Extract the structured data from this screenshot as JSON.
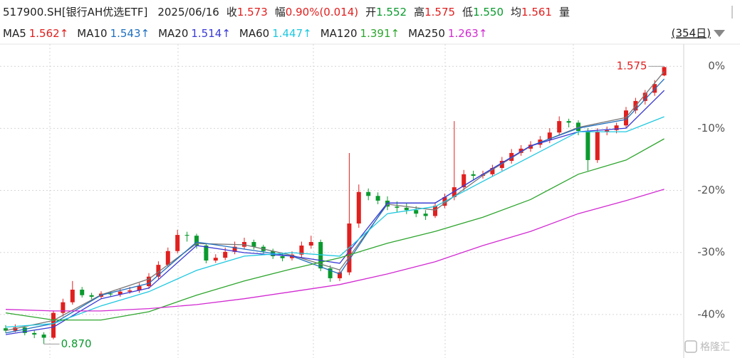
{
  "chart_data": {
    "type": "candlestick",
    "title": "517900.SH[银行AH优选ETF]",
    "date": "2025/06/16",
    "quote": [
      {
        "label": "收",
        "value": "1.573",
        "color": "#e0201f"
      },
      {
        "label": "幅",
        "value": "0.90%(0.014)",
        "color": "#e0201f"
      },
      {
        "label": "开",
        "value": "1.552",
        "color": "#0a9a2e"
      },
      {
        "label": "高",
        "value": "1.575",
        "color": "#e0201f"
      },
      {
        "label": "低",
        "value": "1.550",
        "color": "#0a9a2e"
      },
      {
        "label": "均",
        "value": "1.561",
        "color": "#e0201f"
      }
    ],
    "volume_label": "量",
    "period_label": "(354日)",
    "up_color": "#e0201f",
    "down_color": "#0a9a2e",
    "ohlc": [
      [
        0.91,
        0.918,
        0.898,
        0.904
      ],
      [
        0.904,
        0.92,
        0.9,
        0.912
      ],
      [
        0.912,
        0.916,
        0.892,
        0.898
      ],
      [
        0.898,
        0.904,
        0.885,
        0.894
      ],
      [
        0.894,
        0.9,
        0.87,
        0.886
      ],
      [
        0.886,
        0.955,
        0.882,
        0.949
      ],
      [
        0.949,
        0.985,
        0.94,
        0.976
      ],
      [
        0.976,
        1.03,
        0.97,
        1.008
      ],
      [
        1.008,
        1.015,
        0.988,
        0.994
      ],
      [
        0.994,
        1.0,
        0.984,
        0.99
      ],
      [
        0.99,
        1.004,
        0.985,
        0.998
      ],
      [
        0.998,
        1.004,
        0.99,
        0.996
      ],
      [
        0.996,
        1.01,
        0.99,
        1.003
      ],
      [
        1.003,
        1.015,
        0.998,
        1.006
      ],
      [
        1.006,
        1.025,
        1.0,
        1.017
      ],
      [
        1.017,
        1.05,
        1.01,
        1.041
      ],
      [
        1.041,
        1.08,
        1.035,
        1.071
      ],
      [
        1.071,
        1.115,
        1.065,
        1.106
      ],
      [
        1.106,
        1.16,
        1.1,
        1.147
      ],
      [
        1.147,
        1.155,
        1.13,
        1.145
      ],
      [
        1.145,
        1.15,
        1.112,
        1.12
      ],
      [
        1.12,
        1.125,
        1.075,
        1.082
      ],
      [
        1.082,
        1.098,
        1.076,
        1.089
      ],
      [
        1.089,
        1.115,
        1.083,
        1.104
      ],
      [
        1.104,
        1.13,
        1.098,
        1.117
      ],
      [
        1.117,
        1.14,
        1.11,
        1.129
      ],
      [
        1.129,
        1.135,
        1.11,
        1.117
      ],
      [
        1.117,
        1.122,
        1.1,
        1.106
      ],
      [
        1.106,
        1.112,
        1.086,
        1.093
      ],
      [
        1.093,
        1.1,
        1.08,
        1.088
      ],
      [
        1.088,
        1.105,
        1.082,
        1.097
      ],
      [
        1.097,
        1.13,
        1.09,
        1.12
      ],
      [
        1.12,
        1.145,
        1.112,
        1.129
      ],
      [
        1.129,
        1.135,
        1.055,
        1.062
      ],
      [
        1.062,
        1.07,
        1.028,
        1.037
      ],
      [
        1.037,
        1.06,
        1.03,
        1.052
      ],
      [
        1.052,
        1.355,
        1.045,
        1.176
      ],
      [
        1.176,
        1.275,
        1.165,
        1.256
      ],
      [
        1.256,
        1.265,
        1.235,
        1.246
      ],
      [
        1.246,
        1.255,
        1.225,
        1.234
      ],
      [
        1.234,
        1.245,
        1.21,
        1.219
      ],
      [
        1.219,
        1.232,
        1.205,
        1.216
      ],
      [
        1.216,
        1.228,
        1.2,
        1.21
      ],
      [
        1.21,
        1.22,
        1.192,
        1.201
      ],
      [
        1.201,
        1.21,
        1.185,
        1.195
      ],
      [
        1.195,
        1.23,
        1.19,
        1.221
      ],
      [
        1.221,
        1.252,
        1.215,
        1.243
      ],
      [
        1.243,
        1.436,
        1.235,
        1.268
      ],
      [
        1.268,
        1.312,
        1.26,
        1.301
      ],
      [
        1.301,
        1.31,
        1.285,
        1.297
      ],
      [
        1.297,
        1.31,
        1.29,
        1.301
      ],
      [
        1.301,
        1.325,
        1.295,
        1.317
      ],
      [
        1.317,
        1.345,
        1.31,
        1.335
      ],
      [
        1.335,
        1.365,
        1.328,
        1.355
      ],
      [
        1.355,
        1.375,
        1.348,
        1.366
      ],
      [
        1.366,
        1.385,
        1.358,
        1.376
      ],
      [
        1.376,
        1.398,
        1.368,
        1.389
      ],
      [
        1.389,
        1.418,
        1.38,
        1.407
      ],
      [
        1.407,
        1.448,
        1.4,
        1.436
      ],
      [
        1.436,
        1.442,
        1.42,
        1.432
      ],
      [
        1.432,
        1.438,
        1.4,
        1.411
      ],
      [
        1.411,
        1.418,
        1.31,
        1.337
      ],
      [
        1.337,
        1.418,
        1.33,
        1.409
      ],
      [
        1.409,
        1.422,
        1.4,
        1.413
      ],
      [
        1.413,
        1.432,
        1.405,
        1.425
      ],
      [
        1.425,
        1.472,
        1.418,
        1.463
      ],
      [
        1.463,
        1.495,
        1.455,
        1.487
      ],
      [
        1.487,
        1.515,
        1.478,
        1.508
      ],
      [
        1.508,
        1.54,
        1.5,
        1.53
      ],
      [
        1.552,
        1.575,
        1.55,
        1.573
      ]
    ],
    "ma_x": [
      0,
      5,
      10,
      15,
      20,
      25,
      30,
      35,
      40,
      45,
      50,
      55,
      60,
      65,
      69
    ],
    "series": [
      {
        "name": "MA5",
        "label": "1.562↑",
        "color": "#777777",
        "label_color": "#e0201f",
        "values": [
          0.904,
          0.93,
          0.995,
          1.035,
          1.125,
          1.122,
          1.095,
          1.058,
          1.225,
          1.21,
          1.298,
          1.372,
          1.42,
          1.445,
          1.562
        ]
      },
      {
        "name": "MA10",
        "label": "1.543↑",
        "color": "#1f6fc0",
        "label_color": "#1f6fc0",
        "values": [
          0.898,
          0.922,
          0.994,
          1.024,
          1.129,
          1.111,
          1.093,
          1.048,
          1.228,
          1.228,
          1.301,
          1.373,
          1.418,
          1.44,
          1.543
        ]
      },
      {
        "name": "MA20",
        "label": "1.514↑",
        "color": "#3a3ad6",
        "label_color": "#3a3ad6",
        "values": [
          0.894,
          0.913,
          0.985,
          1.012,
          1.12,
          1.102,
          1.093,
          1.075,
          1.228,
          1.228,
          1.301,
          1.373,
          1.409,
          1.418,
          1.514
        ]
      },
      {
        "name": "MA60",
        "label": "1.447↑",
        "color": "#1ec8e0",
        "label_color": "#1ec8e0",
        "values": [
          0.913,
          0.922,
          0.967,
          1.003,
          1.057,
          1.093,
          1.102,
          1.093,
          1.201,
          1.219,
          1.283,
          1.346,
          1.409,
          1.409,
          1.447
        ]
      },
      {
        "name": "MA120",
        "label": "1.391↑",
        "color": "#2ea52e",
        "label_color": "#2ea52e",
        "values": [
          0.949,
          0.931,
          0.931,
          0.952,
          0.994,
          1.03,
          1.061,
          1.089,
          1.126,
          1.156,
          1.192,
          1.237,
          1.301,
          1.337,
          1.391
        ]
      },
      {
        "name": "MA250",
        "label": "1.263↑",
        "color": "#d22ad2",
        "label_color": "#d22ad2",
        "values": [
          0.958,
          0.954,
          0.954,
          0.96,
          0.97,
          0.985,
          1.003,
          1.021,
          1.048,
          1.079,
          1.12,
          1.156,
          1.201,
          1.234,
          1.263
        ]
      }
    ],
    "high_label": "1.575",
    "low_label": "0.870",
    "ylim": [
      0.858,
      1.635
    ],
    "yticks": [
      {
        "value": 1.575,
        "label": "0%"
      },
      {
        "value": 1.4175,
        "label": "-10%"
      },
      {
        "value": 1.26,
        "label": "-20%"
      },
      {
        "value": 1.1025,
        "label": "-30%"
      },
      {
        "value": 0.945,
        "label": "-40%"
      }
    ],
    "grid": true,
    "watermark": "格隆汇"
  }
}
